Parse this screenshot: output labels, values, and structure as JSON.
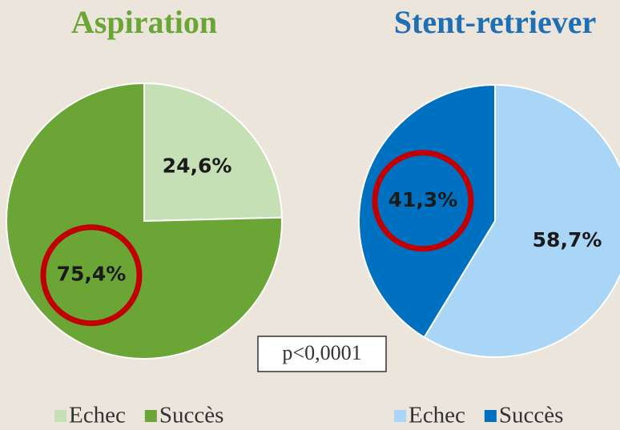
{
  "chart_data": [
    {
      "type": "pie",
      "title": "Aspiration",
      "title_color": "#6aa535",
      "categories": [
        "Echec",
        "Succès"
      ],
      "values": [
        24.6,
        75.4
      ],
      "value_labels": [
        "24,6%",
        "75,4%"
      ],
      "colors": [
        "#c5e0b4",
        "#6aa535"
      ],
      "highlight": 1
    },
    {
      "type": "pie",
      "title": "Stent-retriever",
      "title_color": "#1f6fb5",
      "categories": [
        "Echec",
        "Succès"
      ],
      "values": [
        58.7,
        41.3
      ],
      "value_labels": [
        "58,7%",
        "41,3%"
      ],
      "colors": [
        "#a9d6f7",
        "#0070c0"
      ],
      "highlight": 1
    }
  ],
  "annotation": "p<0,0001"
}
